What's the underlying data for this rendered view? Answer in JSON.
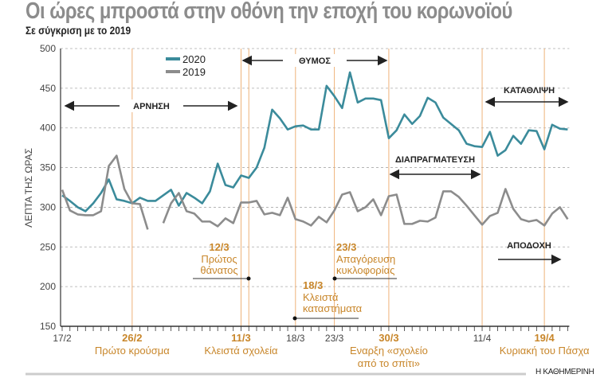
{
  "title": "Οι ώρες μπροστά στην οθόνη την εποχή του κορωνοϊού",
  "subtitle": "Σε σύγκριση με το 2019",
  "footer": "Η ΚΑΘΗΜΕΡΙΝΗ",
  "colors": {
    "2020": "#3b8b9b",
    "2019": "#8c8c8c",
    "event": "#c8862a",
    "event_line": "#eeb27a"
  },
  "chart_data": {
    "type": "line",
    "ylabel": "ΛΕΠΤΑ ΤΗΣ ΩΡΑΣ",
    "ylim": [
      150,
      500
    ],
    "yticks": [
      150,
      200,
      250,
      300,
      350,
      400,
      450,
      500
    ],
    "grid": "horizontal dashed",
    "legend": "top-left",
    "x_start": "17/2",
    "x_end": "22/4",
    "xticks": [
      {
        "label": "17/2",
        "day": 0,
        "bold": false
      },
      {
        "label": "26/2",
        "day": 9,
        "bold": true
      },
      {
        "label": "11/3",
        "day": 23,
        "bold": true
      },
      {
        "label": "18/3",
        "day": 30,
        "bold": false
      },
      {
        "label": "23/3",
        "day": 35,
        "bold": false
      },
      {
        "label": "30/3",
        "day": 42,
        "bold": true
      },
      {
        "label": "11/4",
        "day": 54,
        "bold": false
      },
      {
        "label": "19/4",
        "day": 62,
        "bold": true
      }
    ],
    "series": [
      {
        "name": "2020",
        "values": [
          315,
          308,
          300,
          295,
          305,
          318,
          335,
          310,
          308,
          305,
          312,
          308,
          308,
          315,
          322,
          302,
          318,
          312,
          305,
          320,
          355,
          328,
          325,
          340,
          337,
          350,
          375,
          423,
          412,
          398,
          402,
          403,
          398,
          398,
          453,
          440,
          425,
          470,
          432,
          437,
          437,
          435,
          387,
          397,
          417,
          405,
          415,
          438,
          432,
          413,
          405,
          397,
          380,
          377,
          376,
          395,
          365,
          372,
          390,
          380,
          397,
          396,
          373,
          404,
          399,
          398
        ]
      },
      {
        "name": "2019",
        "values": [
          322,
          296,
          291,
          290,
          290,
          295,
          352,
          365,
          323,
          305,
          304,
          272,
          null,
          280,
          305,
          318,
          295,
          292,
          282,
          282,
          276,
          286,
          280,
          306,
          306,
          308,
          291,
          293,
          290,
          312,
          285,
          282,
          277,
          288,
          281,
          296,
          316,
          319,
          295,
          300,
          310,
          290,
          314,
          316,
          279,
          279,
          283,
          282,
          287,
          320,
          320,
          313,
          302,
          290,
          278,
          289,
          293,
          323,
          298,
          285,
          282,
          284,
          277,
          292,
          300,
          285
        ]
      }
    ],
    "events": [
      {
        "date": "26/2",
        "label": "Πρώτο κρούσμα"
      },
      {
        "date": "11/3",
        "label": "Κλειστά σχολεία"
      },
      {
        "date": "30/3",
        "label": "Εναρξη «σχολείο από το σπίτι»",
        "lines": [
          "Εναρξη «σχολείο",
          "από το σπίτι»"
        ]
      },
      {
        "date": "19/4",
        "label": "Κυριακή του Πάσχα"
      }
    ],
    "callouts": [
      {
        "date": "12/3",
        "lines": [
          "Πρώτος",
          "θάνατος"
        ]
      },
      {
        "date": "18/3",
        "lines": [
          "Κλειστά",
          "καταστήματα"
        ]
      },
      {
        "date": "23/3",
        "lines": [
          "Απαγόρευση",
          "κυκλοφορίας"
        ]
      }
    ],
    "phases": [
      {
        "label": "ΑΡΝΗΣΗ",
        "from": "17/2",
        "to": "11/3"
      },
      {
        "label": "ΘΥΜΟΣ",
        "from": "12/3",
        "to": "30/3"
      },
      {
        "label": "ΔΙΑΠΡΑΓΜΑΤΕΥΣΗ",
        "from": "30/3",
        "to": "11/4"
      },
      {
        "label": "ΚΑΤΑΘΛΙΨΗ",
        "from": "11/4",
        "to": "22/4"
      },
      {
        "label": "ΑΠΟΔΟΧΗ",
        "from": "13/4",
        "to": "21/4"
      }
    ]
  }
}
